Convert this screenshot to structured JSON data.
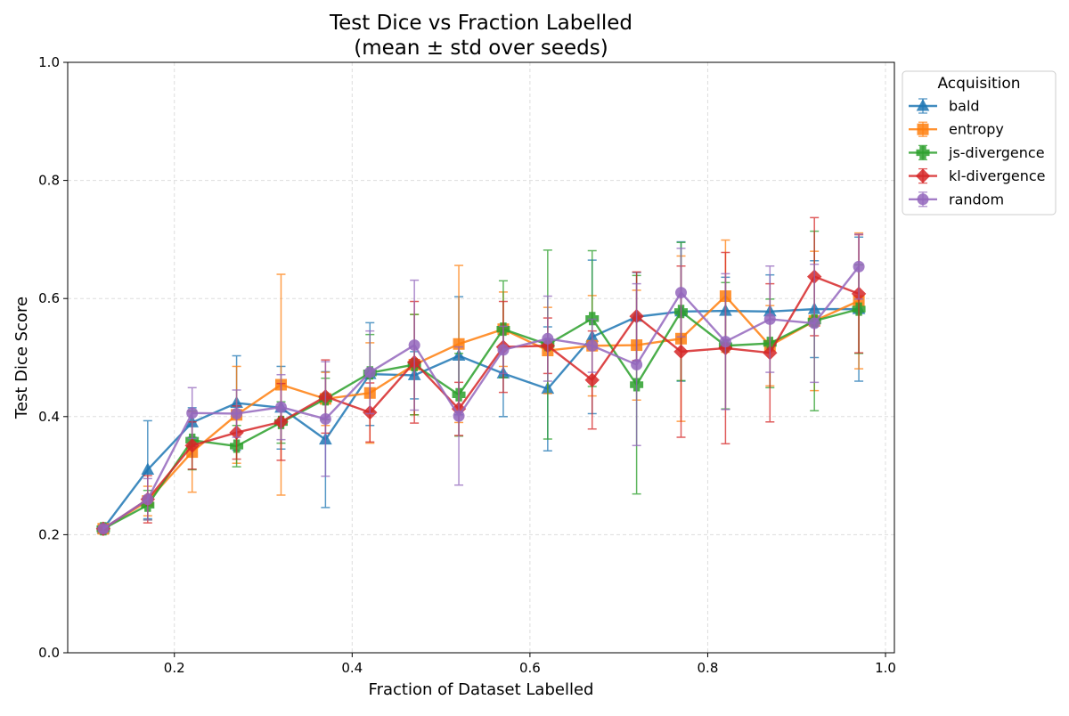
{
  "chart_data": {
    "type": "line",
    "title_line1": "Test Dice vs Fraction Labelled",
    "title_line2": "(mean ± std over seeds)",
    "xlabel": "Fraction of Dataset Labelled",
    "ylabel": "Test Dice Score",
    "xlim": [
      0.08,
      1.01
    ],
    "ylim": [
      0.0,
      1.0
    ],
    "xticks": [
      0.2,
      0.4,
      0.6,
      0.8,
      1.0
    ],
    "xtick_labels": [
      "0.2",
      "0.4",
      "0.6",
      "0.8",
      "1.0"
    ],
    "yticks": [
      0.0,
      0.2,
      0.4,
      0.6,
      0.8,
      1.0
    ],
    "ytick_labels": [
      "0.0",
      "0.2",
      "0.4",
      "0.6",
      "0.8",
      "1.0"
    ],
    "grid": true,
    "legend_title": "Acquisition",
    "legend_placement": "outside top-right",
    "x": [
      0.12,
      0.17,
      0.22,
      0.27,
      0.32,
      0.37,
      0.42,
      0.47,
      0.52,
      0.57,
      0.62,
      0.67,
      0.72,
      0.77,
      0.82,
      0.87,
      0.92,
      0.97
    ],
    "series": [
      {
        "name": "bald",
        "color": "#1f77b4",
        "marker": "triangle",
        "values": [
          0.21,
          0.31,
          0.39,
          0.423,
          0.415,
          0.361,
          0.472,
          0.47,
          0.503,
          0.473,
          0.447,
          0.535,
          0.569,
          0.578,
          0.579,
          0.578,
          0.582,
          0.582
        ],
        "errors": [
          0.005,
          0.083,
          0.025,
          0.08,
          0.07,
          0.115,
          0.087,
          0.04,
          0.1,
          0.073,
          0.105,
          0.13,
          0.075,
          0.118,
          0.057,
          0.062,
          0.082,
          0.122
        ]
      },
      {
        "name": "entropy",
        "color": "#ff7f0e",
        "marker": "square",
        "values": [
          0.21,
          0.257,
          0.34,
          0.403,
          0.454,
          0.43,
          0.44,
          0.488,
          0.523,
          0.548,
          0.512,
          0.52,
          0.521,
          0.532,
          0.604,
          0.52,
          0.562,
          0.596
        ],
        "errors": [
          0.005,
          0.025,
          0.068,
          0.082,
          0.187,
          0.045,
          0.085,
          0.085,
          0.133,
          0.063,
          0.073,
          0.085,
          0.093,
          0.14,
          0.095,
          0.068,
          0.118,
          0.115
        ]
      },
      {
        "name": "js-divergence",
        "color": "#2ca02c",
        "marker": "plus",
        "values": [
          0.21,
          0.25,
          0.36,
          0.35,
          0.39,
          0.43,
          0.474,
          0.488,
          0.437,
          0.548,
          0.522,
          0.566,
          0.454,
          0.578,
          0.52,
          0.524,
          0.562,
          0.582
        ],
        "errors": [
          0.005,
          0.025,
          0.05,
          0.035,
          0.035,
          0.035,
          0.065,
          0.085,
          0.07,
          0.082,
          0.16,
          0.115,
          0.185,
          0.117,
          0.107,
          0.075,
          0.152,
          0.075
        ]
      },
      {
        "name": "kl-divergence",
        "color": "#d62728",
        "marker": "diamond",
        "values": [
          0.21,
          0.26,
          0.351,
          0.373,
          0.391,
          0.434,
          0.407,
          0.492,
          0.413,
          0.518,
          0.52,
          0.462,
          0.57,
          0.51,
          0.516,
          0.508,
          0.637,
          0.608
        ],
        "errors": [
          0.005,
          0.04,
          0.04,
          0.045,
          0.065,
          0.062,
          0.05,
          0.103,
          0.045,
          0.077,
          0.047,
          0.083,
          0.075,
          0.145,
          0.162,
          0.117,
          0.1,
          0.1
        ]
      },
      {
        "name": "random",
        "color": "#9467bd",
        "marker": "circle",
        "values": [
          0.21,
          0.26,
          0.406,
          0.405,
          0.416,
          0.396,
          0.475,
          0.521,
          0.401,
          0.513,
          0.532,
          0.52,
          0.488,
          0.61,
          0.527,
          0.565,
          0.558,
          0.654
        ],
        "errors": [
          0.005,
          0.035,
          0.043,
          0.04,
          0.055,
          0.097,
          0.07,
          0.11,
          0.117,
          0.04,
          0.072,
          0.045,
          0.137,
          0.075,
          0.115,
          0.09,
          0.1,
          0.055
        ]
      }
    ]
  }
}
